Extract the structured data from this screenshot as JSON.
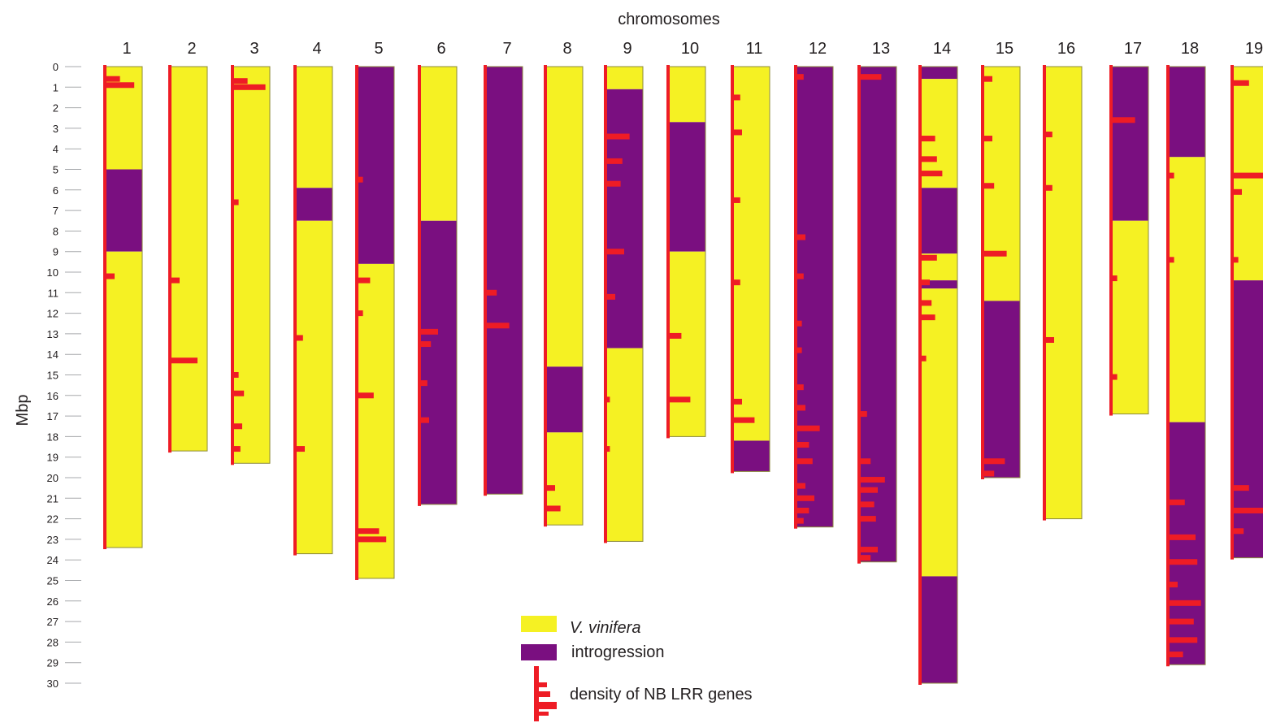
{
  "colors": {
    "vinifera": "#f5f123",
    "introgression": "#7a0f80",
    "genes": "#ee1c25",
    "outline": "#8c8a3c"
  },
  "diagram": {
    "title": "chromosomes",
    "ylabel": "Mbp",
    "ticks": [
      0,
      1,
      2,
      3,
      4,
      5,
      6,
      7,
      8,
      9,
      10,
      11,
      12,
      13,
      14,
      15,
      16,
      17,
      18,
      19,
      20,
      21,
      22,
      23,
      24,
      25,
      26,
      27,
      28,
      29,
      30
    ],
    "chromosomes": [
      {
        "label": "1",
        "length": 23.4,
        "segments": [
          {
            "type": "v",
            "from": 0,
            "to": 5
          },
          {
            "type": "i",
            "from": 5,
            "to": 9
          },
          {
            "type": "v",
            "from": 9,
            "to": 23.4
          }
        ],
        "peaks": [
          [
            0.9,
            1.6
          ],
          [
            0.6,
            0.8
          ],
          [
            10.2,
            0.5
          ]
        ]
      },
      {
        "label": "2",
        "length": 18.7,
        "segments": [
          {
            "type": "v",
            "from": 0,
            "to": 18.7
          }
        ],
        "peaks": [
          [
            10.4,
            0.5
          ],
          [
            14.3,
            1.5
          ]
        ]
      },
      {
        "label": "3",
        "length": 19.3,
        "segments": [
          {
            "type": "v",
            "from": 0,
            "to": 19.3
          }
        ],
        "peaks": [
          [
            1.0,
            1.8
          ],
          [
            0.7,
            0.8
          ],
          [
            6.6,
            0.3
          ],
          [
            15.0,
            0.3
          ],
          [
            15.9,
            0.6
          ],
          [
            17.5,
            0.5
          ],
          [
            18.6,
            0.4
          ]
        ]
      },
      {
        "label": "4",
        "length": 23.7,
        "segments": [
          {
            "type": "v",
            "from": 0,
            "to": 5.9
          },
          {
            "type": "i",
            "from": 5.9,
            "to": 7.5
          },
          {
            "type": "v",
            "from": 7.5,
            "to": 23.7
          }
        ],
        "peaks": [
          [
            13.2,
            0.4
          ],
          [
            18.6,
            0.5
          ]
        ]
      },
      {
        "label": "5",
        "length": 24.9,
        "segments": [
          {
            "type": "i",
            "from": 0,
            "to": 9.6
          },
          {
            "type": "v",
            "from": 9.6,
            "to": 24.9
          }
        ],
        "peaks": [
          [
            10.4,
            0.7
          ],
          [
            16.0,
            0.9
          ],
          [
            22.6,
            1.2
          ],
          [
            23.0,
            1.6
          ],
          [
            5.5,
            0.3
          ],
          [
            12.0,
            0.3
          ]
        ]
      },
      {
        "label": "6",
        "length": 21.3,
        "segments": [
          {
            "type": "v",
            "from": 0,
            "to": 7.5
          },
          {
            "type": "i",
            "from": 7.5,
            "to": 21.3
          }
        ],
        "peaks": [
          [
            12.9,
            1.0
          ],
          [
            13.5,
            0.6
          ],
          [
            15.4,
            0.4
          ],
          [
            17.2,
            0.5
          ]
        ]
      },
      {
        "label": "7",
        "length": 20.8,
        "segments": [
          {
            "type": "i",
            "from": 0,
            "to": 20.8
          }
        ],
        "peaks": [
          [
            11.0,
            0.6
          ],
          [
            12.6,
            1.3
          ]
        ]
      },
      {
        "label": "8",
        "length": 22.3,
        "segments": [
          {
            "type": "v",
            "from": 0,
            "to": 14.6
          },
          {
            "type": "i",
            "from": 14.6,
            "to": 17.8
          },
          {
            "type": "v",
            "from": 17.8,
            "to": 22.3
          }
        ],
        "peaks": [
          [
            20.5,
            0.5
          ],
          [
            21.5,
            0.8
          ]
        ]
      },
      {
        "label": "9",
        "length": 23.1,
        "segments": [
          {
            "type": "v",
            "from": 0,
            "to": 1.1
          },
          {
            "type": "i",
            "from": 1.1,
            "to": 13.7
          },
          {
            "type": "v",
            "from": 13.7,
            "to": 23.1
          }
        ],
        "peaks": [
          [
            3.4,
            1.3
          ],
          [
            4.6,
            0.9
          ],
          [
            5.7,
            0.8
          ],
          [
            9.0,
            1.0
          ],
          [
            11.2,
            0.5
          ],
          [
            16.2,
            0.2
          ],
          [
            18.6,
            0.2
          ]
        ]
      },
      {
        "label": "10",
        "length": 18.0,
        "segments": [
          {
            "type": "v",
            "from": 0,
            "to": 2.7
          },
          {
            "type": "i",
            "from": 2.7,
            "to": 9.0
          },
          {
            "type": "v",
            "from": 9.0,
            "to": 18.0
          }
        ],
        "peaks": [
          [
            13.1,
            0.7
          ],
          [
            16.2,
            1.2
          ]
        ]
      },
      {
        "label": "11",
        "length": 19.7,
        "segments": [
          {
            "type": "v",
            "from": 0,
            "to": 18.2
          },
          {
            "type": "i",
            "from": 18.2,
            "to": 19.7
          }
        ],
        "peaks": [
          [
            1.5,
            0.4
          ],
          [
            3.2,
            0.5
          ],
          [
            6.5,
            0.4
          ],
          [
            10.5,
            0.4
          ],
          [
            16.3,
            0.5
          ],
          [
            17.2,
            1.2
          ]
        ]
      },
      {
        "label": "12",
        "length": 22.4,
        "segments": [
          {
            "type": "i",
            "from": 0,
            "to": 22.4
          }
        ],
        "peaks": [
          [
            0.5,
            0.4
          ],
          [
            8.3,
            0.5
          ],
          [
            10.2,
            0.4
          ],
          [
            12.5,
            0.3
          ],
          [
            13.8,
            0.3
          ],
          [
            15.6,
            0.4
          ],
          [
            16.6,
            0.5
          ],
          [
            17.6,
            1.3
          ],
          [
            18.4,
            0.7
          ],
          [
            19.2,
            0.9
          ],
          [
            20.4,
            0.5
          ],
          [
            21.0,
            1.0
          ],
          [
            21.6,
            0.7
          ],
          [
            22.1,
            0.4
          ]
        ]
      },
      {
        "label": "13",
        "length": 24.1,
        "segments": [
          {
            "type": "i",
            "from": 0,
            "to": 24.1
          }
        ],
        "peaks": [
          [
            0.5,
            1.2
          ],
          [
            16.9,
            0.4
          ],
          [
            19.2,
            0.6
          ],
          [
            20.1,
            1.4
          ],
          [
            20.6,
            1.0
          ],
          [
            21.3,
            0.8
          ],
          [
            22.0,
            0.9
          ],
          [
            23.5,
            1.0
          ],
          [
            23.9,
            0.6
          ]
        ]
      },
      {
        "label": "14",
        "length": 30.0,
        "segments": [
          {
            "type": "i",
            "from": 0,
            "to": 0.6
          },
          {
            "type": "v",
            "from": 0.6,
            "to": 5.9
          },
          {
            "type": "i",
            "from": 5.9,
            "to": 9.1
          },
          {
            "type": "v",
            "from": 9.1,
            "to": 10.4
          },
          {
            "type": "i",
            "from": 10.4,
            "to": 10.8
          },
          {
            "type": "v",
            "from": 10.8,
            "to": 24.8
          },
          {
            "type": "i",
            "from": 24.8,
            "to": 30.0
          }
        ],
        "peaks": [
          [
            3.5,
            0.8
          ],
          [
            4.5,
            0.9
          ],
          [
            5.2,
            1.2
          ],
          [
            9.3,
            0.9
          ],
          [
            10.5,
            0.5
          ],
          [
            11.5,
            0.6
          ],
          [
            12.2,
            0.8
          ],
          [
            14.2,
            0.3
          ]
        ]
      },
      {
        "label": "15",
        "length": 20.0,
        "segments": [
          {
            "type": "v",
            "from": 0,
            "to": 11.4
          },
          {
            "type": "i",
            "from": 11.4,
            "to": 20.0
          }
        ],
        "peaks": [
          [
            0.6,
            0.5
          ],
          [
            3.5,
            0.5
          ],
          [
            5.8,
            0.6
          ],
          [
            9.1,
            1.3
          ],
          [
            19.2,
            1.2
          ],
          [
            19.8,
            0.6
          ]
        ]
      },
      {
        "label": "16",
        "length": 22.0,
        "segments": [
          {
            "type": "v",
            "from": 0,
            "to": 22.0
          }
        ],
        "peaks": [
          [
            3.3,
            0.4
          ],
          [
            5.9,
            0.4
          ],
          [
            13.3,
            0.5
          ]
        ]
      },
      {
        "label": "17",
        "length": 16.9,
        "segments": [
          {
            "type": "i",
            "from": 0,
            "to": 7.5
          },
          {
            "type": "v",
            "from": 7.5,
            "to": 16.9
          }
        ],
        "peaks": [
          [
            2.6,
            1.3
          ],
          [
            10.3,
            0.3
          ],
          [
            15.1,
            0.3
          ]
        ]
      },
      {
        "label": "18",
        "length": 29.1,
        "segments": [
          {
            "type": "i",
            "from": 0,
            "to": 4.4
          },
          {
            "type": "v",
            "from": 4.4,
            "to": 17.3
          },
          {
            "type": "i",
            "from": 17.3,
            "to": 29.1
          }
        ],
        "peaks": [
          [
            5.3,
            0.3
          ],
          [
            9.4,
            0.3
          ],
          [
            21.2,
            0.9
          ],
          [
            22.9,
            1.5
          ],
          [
            24.1,
            1.6
          ],
          [
            25.2,
            0.5
          ],
          [
            26.1,
            1.8
          ],
          [
            27.0,
            1.4
          ],
          [
            27.9,
            1.6
          ],
          [
            28.6,
            0.8
          ]
        ]
      },
      {
        "label": "19",
        "length": 23.9,
        "segments": [
          {
            "type": "v",
            "from": 0,
            "to": 10.4
          },
          {
            "type": "i",
            "from": 10.4,
            "to": 23.9
          }
        ],
        "peaks": [
          [
            0.8,
            0.9
          ],
          [
            5.3,
            1.7
          ],
          [
            6.1,
            0.5
          ],
          [
            9.4,
            0.3
          ],
          [
            20.5,
            0.9
          ],
          [
            21.6,
            1.8
          ],
          [
            22.6,
            0.6
          ]
        ]
      }
    ],
    "legend": {
      "vinifera_label": "V. vinifera",
      "introgression_label": "introgression",
      "density_label": "density of NB LRR genes"
    }
  }
}
